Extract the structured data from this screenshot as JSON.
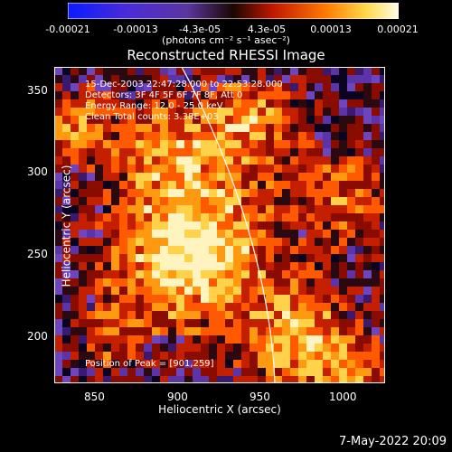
{
  "colorbar": {
    "ticks": [
      "-0.00021",
      "-0.00013",
      "-4.3e-05",
      "4.3e-05",
      "0.00013",
      "0.00021"
    ],
    "units": "(photons cm⁻² s⁻¹ asec⁻²)"
  },
  "title": "Reconstructed RHESSI Image",
  "overlay": {
    "line1": "15-Dec-2003 22:47:28.000 to 22:53:28.000",
    "line2": "Detectors: 3F 4F 5F 6F 7F 8F, Att 0",
    "line3": "Energy Range: 12.0 - 25.0 keV",
    "line4": "Clean     Total counts: 3.38E+03",
    "peak": "Position of Peak = [901,259]"
  },
  "axes": {
    "xlabel": "Heliocentric X (arcsec)",
    "ylabel": "Heliocentric Y (arcsec)",
    "xticks": [
      "850",
      "900",
      "950",
      "1000"
    ],
    "yticks": [
      "350",
      "300",
      "250",
      "200"
    ]
  },
  "timestamp": "7-May-2022 20:09",
  "colors": {
    "frame": "#ffffff",
    "limb": "#ffffff",
    "background": "#000000"
  }
}
